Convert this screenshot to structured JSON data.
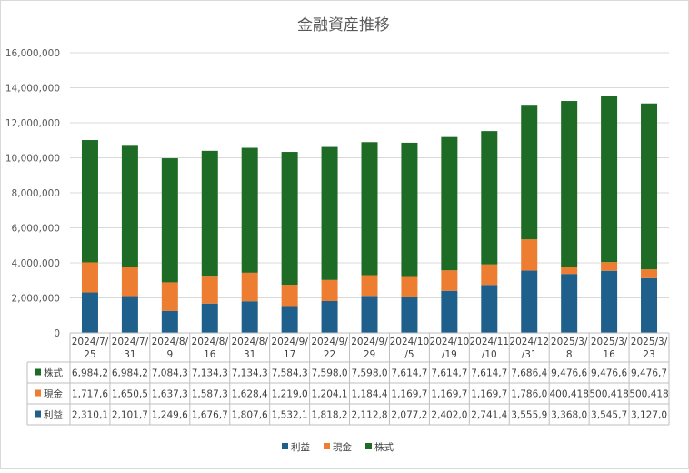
{
  "chart_data": {
    "type": "bar",
    "stacked": true,
    "title": "金融資産推移",
    "xlabel": "",
    "ylabel": "",
    "ylim": [
      0,
      16000000
    ],
    "yticks": [
      0,
      2000000,
      4000000,
      6000000,
      8000000,
      10000000,
      12000000,
      14000000,
      16000000
    ],
    "ytick_labels": [
      "0",
      "2,000,000",
      "4,000,000",
      "6,000,000",
      "8,000,000",
      "10,000,000",
      "12,000,000",
      "14,000,000",
      "16,000,000"
    ],
    "grid": true,
    "legend_position": "bottom",
    "categories": [
      [
        "2024/7/",
        "25"
      ],
      [
        "2024/7/",
        "31"
      ],
      [
        "2024/8/",
        "9"
      ],
      [
        "2024/8/",
        "16"
      ],
      [
        "2024/8/",
        "31"
      ],
      [
        "2024/9/",
        "17"
      ],
      [
        "2024/9/",
        "22"
      ],
      [
        "2024/9/",
        "29"
      ],
      [
        "2024/10",
        "/5"
      ],
      [
        "2024/10",
        "/19"
      ],
      [
        "2024/11",
        "/10"
      ],
      [
        "2024/12",
        "/31"
      ],
      [
        "2025/3/",
        "8"
      ],
      [
        "2025/3/",
        "16"
      ],
      [
        "2025/3/",
        "23"
      ]
    ],
    "series": [
      {
        "name": "利益",
        "color": "#1f5f8b",
        "values": [
          2310100,
          2101700,
          1249600,
          1676700,
          1807600,
          1532100,
          1818200,
          2112800,
          2077200,
          2402000,
          2741400,
          3555900,
          3368000,
          3545700,
          3127000
        ],
        "labels": [
          "2,310,1",
          "2,101,7",
          "1,249,6",
          "1,676,7",
          "1,807,6",
          "1,532,1",
          "1,818,2",
          "2,112,8",
          "2,077,2",
          "2,402,0",
          "2,741,4",
          "3,555,9",
          "3,368,0",
          "3,545,7",
          "3,127,0"
        ]
      },
      {
        "name": "現金",
        "color": "#ed7d31",
        "values": [
          1717600,
          1650500,
          1637300,
          1587300,
          1628400,
          1219000,
          1204100,
          1184400,
          1169700,
          1169700,
          1169700,
          1786000,
          400418,
          500418,
          500418
        ],
        "labels": [
          "1,717,6",
          "1,650,5",
          "1,637,3",
          "1,587,3",
          "1,628,4",
          "1,219,0",
          "1,204,1",
          "1,184,4",
          "1,169,7",
          "1,169,7",
          "1,169,7",
          "1,786,0",
          "400,418",
          "500,418",
          "500,418"
        ]
      },
      {
        "name": "株式",
        "color": "#1e6b25",
        "values": [
          6984200,
          6984200,
          7084300,
          7134300,
          7134300,
          7584300,
          7598000,
          7598000,
          7614700,
          7614700,
          7614700,
          7686400,
          9476600,
          9476600,
          9476700
        ],
        "labels": [
          "6,984,2",
          "6,984,2",
          "7,084,3",
          "7,134,3",
          "7,134,3",
          "7,584,3",
          "7,598,0",
          "7,598,0",
          "7,614,7",
          "7,614,7",
          "7,614,7",
          "7,686,4",
          "9,476,6",
          "9,476,6",
          "9,476,7"
        ]
      }
    ],
    "table_row_order": [
      "株式",
      "現金",
      "利益"
    ]
  }
}
